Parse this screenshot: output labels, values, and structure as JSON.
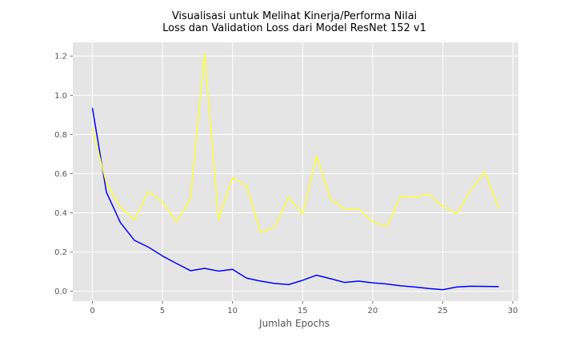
{
  "chart_data": {
    "type": "line",
    "title_lines": [
      "Visualisasi untuk Melihat Kinerja/Performa Nilai",
      "Loss dan Validation Loss dari Model ResNet 152 v1"
    ],
    "xlabel": "Jumlah Epochs",
    "ylabel": "",
    "xlim": [
      -1.4,
      30.4
    ],
    "ylim": [
      -0.05,
      1.27
    ],
    "x_ticks": [
      0,
      5,
      10,
      15,
      20,
      25,
      30
    ],
    "x_tick_labels": [
      "0",
      "5",
      "10",
      "15",
      "20",
      "25",
      "30"
    ],
    "y_ticks": [
      0.0,
      0.2,
      0.4,
      0.6,
      0.8,
      1.0,
      1.2
    ],
    "y_tick_labels": [
      "0.0",
      "0.2",
      "0.4",
      "0.6",
      "0.8",
      "1.0",
      "1.2"
    ],
    "grid": true,
    "background": "#e5e5e5",
    "grid_color": "#ffffff",
    "x": [
      0,
      1,
      2,
      3,
      4,
      5,
      6,
      7,
      8,
      9,
      10,
      11,
      12,
      13,
      14,
      15,
      16,
      17,
      18,
      19,
      20,
      21,
      22,
      23,
      24,
      25,
      26,
      27,
      28,
      29
    ],
    "series": [
      {
        "color": "#0000ff",
        "values": [
          0.935,
          0.505,
          0.35,
          0.26,
          0.225,
          0.18,
          0.142,
          0.105,
          0.117,
          0.103,
          0.112,
          0.067,
          0.052,
          0.04,
          0.034,
          0.056,
          0.082,
          0.064,
          0.045,
          0.052,
          0.043,
          0.037,
          0.028,
          0.022,
          0.014,
          0.008,
          0.022,
          0.026,
          0.025,
          0.024
        ]
      },
      {
        "color": "#ffff33",
        "values": [
          0.83,
          0.55,
          0.43,
          0.365,
          0.51,
          0.455,
          0.355,
          0.47,
          1.215,
          0.365,
          0.58,
          0.54,
          0.3,
          0.325,
          0.48,
          0.395,
          0.69,
          0.47,
          0.42,
          0.42,
          0.355,
          0.33,
          0.485,
          0.48,
          0.495,
          0.435,
          0.395,
          0.515,
          0.61,
          0.425
        ]
      }
    ]
  }
}
